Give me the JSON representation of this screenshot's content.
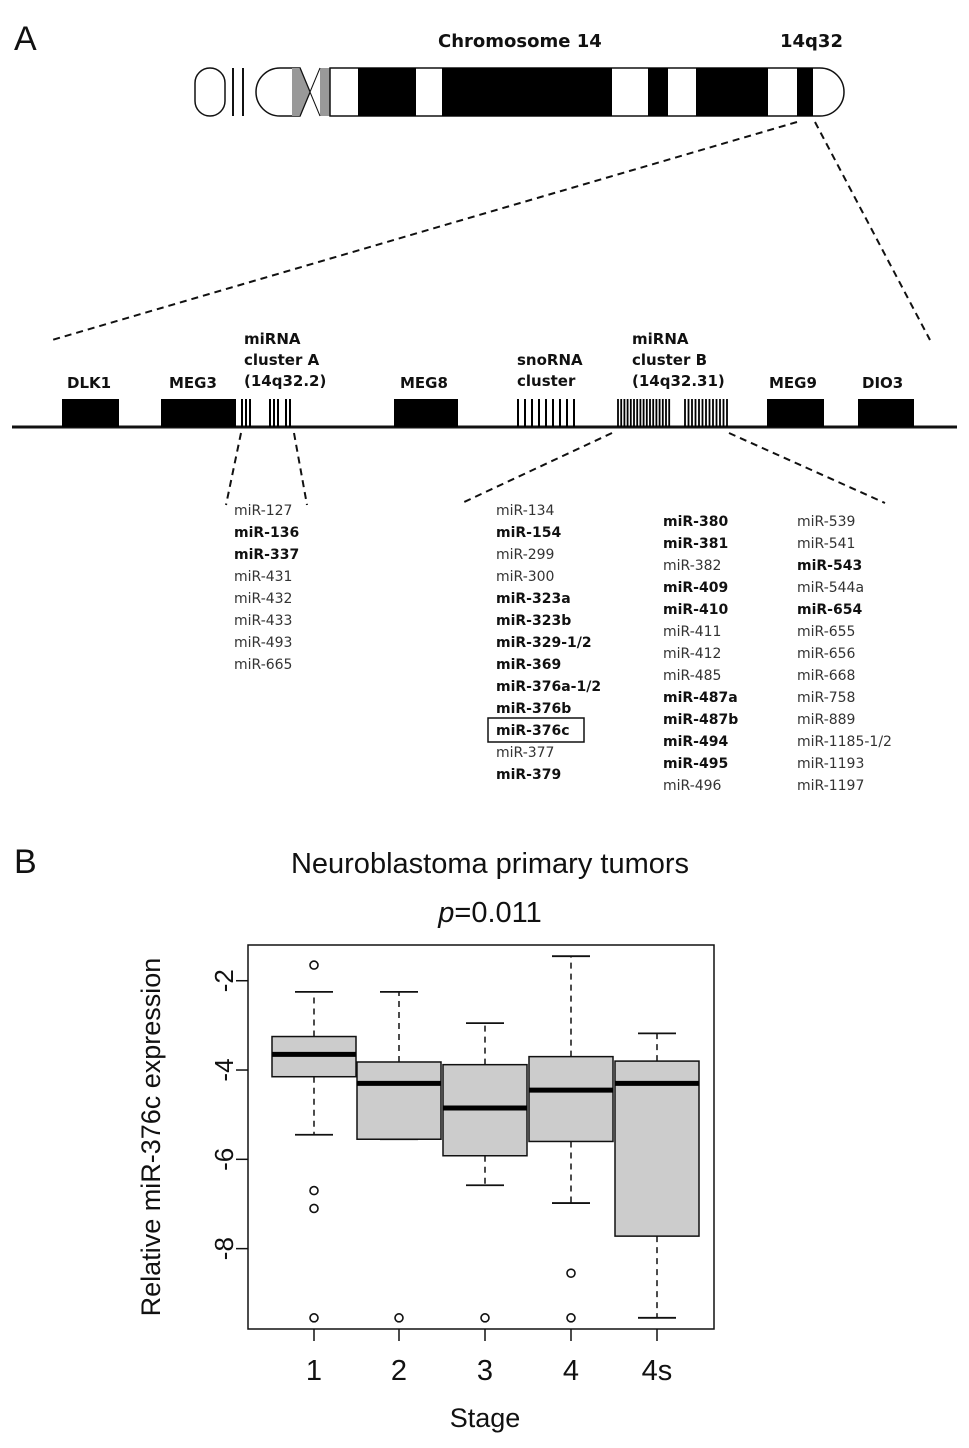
{
  "panelA": {
    "label": "A",
    "chromosome_title": "Chromosome 14",
    "band_label": "14q32",
    "genes": [
      "DLK1",
      "MEG3",
      "MEG8",
      "MEG9",
      "DIO3"
    ],
    "cluster_a": {
      "line1": "miRNA",
      "line2": "cluster A",
      "line3": "(14q32.2)"
    },
    "snorna": {
      "line1": "snoRNA",
      "line2": "cluster"
    },
    "cluster_b": {
      "line1": "miRNA",
      "line2": "cluster B",
      "line3": "(14q32.31)"
    },
    "mirs_a": [
      {
        "name": "miR-127",
        "bold": false
      },
      {
        "name": "miR-136",
        "bold": true
      },
      {
        "name": "miR-337",
        "bold": true
      },
      {
        "name": "miR-431",
        "bold": false
      },
      {
        "name": "miR-432",
        "bold": false
      },
      {
        "name": "miR-433",
        "bold": false
      },
      {
        "name": "miR-493",
        "bold": false
      },
      {
        "name": "miR-665",
        "bold": false
      }
    ],
    "mirs_b1": [
      {
        "name": "miR-134",
        "bold": false
      },
      {
        "name": "miR-154",
        "bold": true
      },
      {
        "name": "miR-299",
        "bold": false
      },
      {
        "name": "miR-300",
        "bold": false
      },
      {
        "name": "miR-323a",
        "bold": true
      },
      {
        "name": "miR-323b",
        "bold": true
      },
      {
        "name": "miR-329-1/2",
        "bold": true
      },
      {
        "name": "miR-369",
        "bold": true
      },
      {
        "name": "miR-376a-1/2",
        "bold": true
      },
      {
        "name": "miR-376b",
        "bold": true
      },
      {
        "name": "miR-376c",
        "bold": true,
        "boxed": true
      },
      {
        "name": "miR-377",
        "bold": false
      },
      {
        "name": "miR-379",
        "bold": true
      }
    ],
    "mirs_b2": [
      {
        "name": "miR-380",
        "bold": true
      },
      {
        "name": "miR-381",
        "bold": true
      },
      {
        "name": "miR-382",
        "bold": false
      },
      {
        "name": "miR-409",
        "bold": true
      },
      {
        "name": "miR-410",
        "bold": true
      },
      {
        "name": "miR-411",
        "bold": false
      },
      {
        "name": "miR-412",
        "bold": false
      },
      {
        "name": "miR-485",
        "bold": false
      },
      {
        "name": "miR-487a",
        "bold": true
      },
      {
        "name": "miR-487b",
        "bold": true
      },
      {
        "name": "miR-494",
        "bold": true
      },
      {
        "name": "miR-495",
        "bold": true
      },
      {
        "name": "miR-496",
        "bold": false
      }
    ],
    "mirs_b3": [
      {
        "name": "miR-539",
        "bold": false
      },
      {
        "name": "miR-541",
        "bold": false
      },
      {
        "name": "miR-543",
        "bold": true
      },
      {
        "name": "miR-544a",
        "bold": false
      },
      {
        "name": "miR-654",
        "bold": true
      },
      {
        "name": "miR-655",
        "bold": false
      },
      {
        "name": "miR-656",
        "bold": false
      },
      {
        "name": "miR-668",
        "bold": false
      },
      {
        "name": "miR-758",
        "bold": false
      },
      {
        "name": "miR-889",
        "bold": false
      },
      {
        "name": "miR-1185-1/2",
        "bold": false
      },
      {
        "name": "miR-1193",
        "bold": false
      },
      {
        "name": "miR-1197",
        "bold": false
      }
    ]
  },
  "panelB": {
    "label": "B",
    "p_prefix": "p",
    "p_value": "=0.011"
  },
  "chart_data": {
    "type": "box",
    "title": "Neuroblastoma primary tumors",
    "xlabel": "Stage",
    "ylabel": "Relative miR-376c expression",
    "categories": [
      "1",
      "2",
      "3",
      "4",
      "4s"
    ],
    "yticks": [
      -2,
      -4,
      -6,
      -8
    ],
    "ylim": [
      -9.8,
      -1.2
    ],
    "box_fill": "#cccccc",
    "boxes": [
      {
        "q1": -4.15,
        "median": -3.65,
        "q3": -3.25,
        "whisker_low": -5.45,
        "whisker_high": -2.25,
        "outliers": [
          -1.65,
          -6.7,
          -7.1,
          -9.55
        ]
      },
      {
        "q1": -5.55,
        "median": -4.3,
        "q3": -3.82,
        "whisker_low": -5.55,
        "whisker_high": -2.25,
        "outliers": [
          -9.55
        ]
      },
      {
        "q1": -5.92,
        "median": -4.85,
        "q3": -3.88,
        "whisker_low": -6.58,
        "whisker_high": -2.95,
        "outliers": [
          -9.55
        ]
      },
      {
        "q1": -5.6,
        "median": -4.45,
        "q3": -3.7,
        "whisker_low": -6.98,
        "whisker_high": -1.45,
        "outliers": [
          -8.55,
          -9.55
        ]
      },
      {
        "q1": -7.72,
        "median": -4.3,
        "q3": -3.8,
        "whisker_low": -9.55,
        "whisker_high": -3.18,
        "outliers": []
      }
    ]
  }
}
